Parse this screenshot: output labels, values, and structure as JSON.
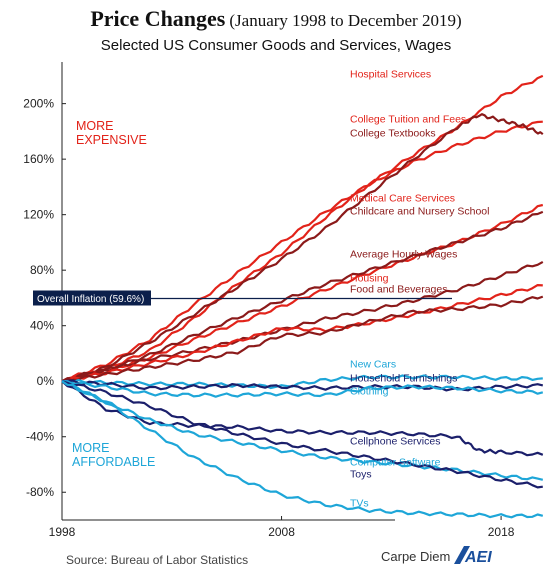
{
  "header": {
    "title": "Price Changes",
    "title_range": "(January 1998 to December 2019)",
    "subtitle": "Selected US Consumer Goods and Services, Wages"
  },
  "annotations": {
    "more_expensive_1": "MORE",
    "more_expensive_2": "EXPENSIVE",
    "more_affordable_1": "MORE",
    "more_affordable_2": "AFFORDABLE",
    "inflation_label": "Overall Inflation (59.6%)"
  },
  "footer": {
    "source": "Source: Bureau of Labor Statistics",
    "brand": "Carpe Diem",
    "logo_text": "AEI"
  },
  "colors": {
    "red": "#e2231a",
    "dark_red": "#8b1a1a",
    "light_blue": "#1ea6d8",
    "navy": "#1b1f6b",
    "inflation_box": "#0b1f4b"
  },
  "chart_data": {
    "type": "line",
    "title": "Price Changes (January 1998 to December 2019)",
    "subtitle": "Selected US Consumer Goods and Services, Wages",
    "xlim": [
      1998,
      2020
    ],
    "ylim": [
      -100,
      230
    ],
    "x_ticks": [
      1998,
      2008,
      2018
    ],
    "y_ticks": [
      -80,
      -40,
      0,
      40,
      80,
      120,
      160,
      200
    ],
    "y_tick_labels": [
      "-80%",
      "-40%",
      "0%",
      "40%",
      "80%",
      "120%",
      "160%",
      "200%"
    ],
    "x_tick_labels": [
      "1998",
      "2008",
      "2018"
    ],
    "grid": false,
    "reference_line": {
      "label": "Overall Inflation (59.6%)",
      "y": 59.6
    },
    "series": [
      {
        "name": "Hospital Services",
        "color": "#e2231a",
        "x": [
          1998,
          2000,
          2002,
          2004,
          2006,
          2008,
          2010,
          2012,
          2014,
          2016,
          2018,
          2019.9
        ],
        "y": [
          0,
          12,
          30,
          55,
          78,
          100,
          122,
          142,
          163,
          183,
          205,
          220
        ]
      },
      {
        "name": "College Tuition and Fees",
        "color": "#e2231a",
        "x": [
          1998,
          2000,
          2002,
          2004,
          2006,
          2008,
          2010,
          2012,
          2014,
          2016,
          2018,
          2019.9
        ],
        "y": [
          0,
          9,
          22,
          45,
          70,
          92,
          118,
          142,
          158,
          170,
          180,
          187
        ]
      },
      {
        "name": "College Textbooks",
        "color": "#8b1a1a",
        "x": [
          1998,
          2000,
          2002,
          2004,
          2006,
          2008,
          2010,
          2012,
          2014,
          2016,
          2017,
          2018,
          2019,
          2019.9
        ],
        "y": [
          0,
          10,
          28,
          48,
          68,
          88,
          110,
          135,
          160,
          183,
          192,
          188,
          184,
          178
        ]
      },
      {
        "name": "Medical Care Services",
        "color": "#e2231a",
        "x": [
          1998,
          2000,
          2002,
          2004,
          2006,
          2008,
          2010,
          2012,
          2014,
          2016,
          2018,
          2019.9
        ],
        "y": [
          0,
          7,
          17,
          30,
          42,
          54,
          66,
          78,
          89,
          100,
          113,
          127
        ]
      },
      {
        "name": "Childcare and Nursery School",
        "color": "#8b1a1a",
        "x": [
          1998,
          2000,
          2002,
          2004,
          2006,
          2008,
          2010,
          2012,
          2014,
          2016,
          2018,
          2019.9
        ],
        "y": [
          0,
          8,
          19,
          33,
          46,
          58,
          70,
          80,
          90,
          100,
          110,
          122
        ]
      },
      {
        "name": "Average Hourly Wages",
        "color": "#8b1a1a",
        "x": [
          1998,
          2000,
          2002,
          2004,
          2006,
          2008,
          2010,
          2012,
          2014,
          2016,
          2018,
          2019.9
        ],
        "y": [
          0,
          8,
          16,
          22,
          29,
          37,
          45,
          51,
          58,
          66,
          76,
          86
        ]
      },
      {
        "name": "Housing",
        "color": "#e2231a",
        "x": [
          1998,
          2000,
          2002,
          2004,
          2006,
          2008,
          2010,
          2012,
          2014,
          2016,
          2018,
          2019.9
        ],
        "y": [
          0,
          6,
          13,
          20,
          29,
          38,
          37,
          42,
          48,
          55,
          62,
          69
        ]
      },
      {
        "name": "Food and Beverages",
        "color": "#8b1a1a",
        "x": [
          1998,
          2000,
          2002,
          2004,
          2006,
          2008,
          2010,
          2012,
          2014,
          2016,
          2018,
          2019.9
        ],
        "y": [
          0,
          5,
          10,
          15,
          21,
          33,
          35,
          43,
          50,
          52,
          55,
          61
        ]
      },
      {
        "name": "New Cars",
        "color": "#1ea6d8",
        "x": [
          1998,
          2000,
          2002,
          2004,
          2006,
          2008,
          2010,
          2012,
          2014,
          2016,
          2018,
          2019.9
        ],
        "y": [
          0,
          -1,
          -2,
          -2,
          -3,
          -4,
          1,
          3,
          3,
          3,
          2,
          2
        ]
      },
      {
        "name": "Household Furnishings",
        "color": "#1b1f6b",
        "x": [
          1998,
          2000,
          2002,
          2004,
          2006,
          2008,
          2010,
          2012,
          2014,
          2016,
          2018,
          2019.9
        ],
        "y": [
          0,
          -2,
          -5,
          -4,
          -3,
          -4,
          -5,
          -4,
          -4,
          -6,
          -4,
          -3
        ]
      },
      {
        "name": "Clothing",
        "color": "#1ea6d8",
        "x": [
          1998,
          2000,
          2002,
          2004,
          2006,
          2008,
          2010,
          2012,
          2014,
          2016,
          2018,
          2019.9
        ],
        "y": [
          0,
          -4,
          -9,
          -10,
          -10,
          -9,
          -10,
          -5,
          -4,
          -5,
          -7,
          -8
        ]
      },
      {
        "name": "Cellphone Services",
        "color": "#1b1f6b",
        "x": [
          1998,
          2000,
          2002,
          2004,
          2006,
          2008,
          2010,
          2012,
          2014,
          2016,
          2017,
          2018,
          2019.9
        ],
        "y": [
          0,
          -20,
          -30,
          -32,
          -33,
          -36,
          -37,
          -37,
          -38,
          -40,
          -50,
          -51,
          -53
        ]
      },
      {
        "name": "Computer Software",
        "color": "#1ea6d8",
        "x": [
          1998,
          2000,
          2002,
          2004,
          2006,
          2008,
          2010,
          2012,
          2014,
          2016,
          2018,
          2019.9
        ],
        "y": [
          0,
          -15,
          -28,
          -38,
          -44,
          -50,
          -55,
          -58,
          -61,
          -64,
          -68,
          -71
        ]
      },
      {
        "name": "Toys",
        "color": "#1b1f6b",
        "x": [
          1998,
          2000,
          2002,
          2004,
          2006,
          2008,
          2010,
          2012,
          2014,
          2016,
          2018,
          2019.9
        ],
        "y": [
          0,
          -8,
          -18,
          -30,
          -38,
          -45,
          -50,
          -55,
          -60,
          -65,
          -71,
          -76
        ]
      },
      {
        "name": "TVs",
        "color": "#1ea6d8",
        "x": [
          1998,
          2000,
          2002,
          2004,
          2006,
          2008,
          2010,
          2012,
          2014,
          2016,
          2018,
          2019.9
        ],
        "y": [
          0,
          -15,
          -35,
          -55,
          -70,
          -82,
          -89,
          -93,
          -95,
          -96,
          -97,
          -97
        ]
      }
    ]
  }
}
